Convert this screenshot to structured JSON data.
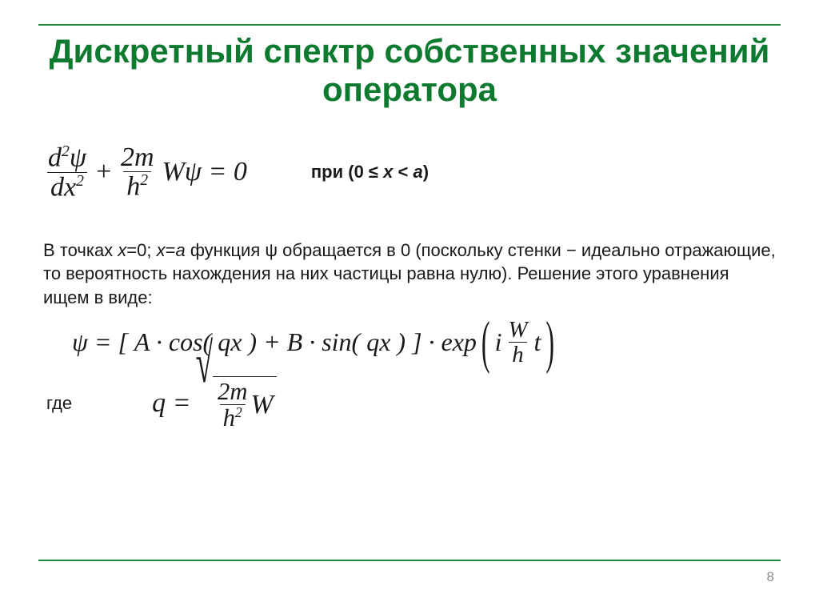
{
  "title": "Дискретный спектр собственных значений оператора",
  "title_color": "#0e7a30",
  "rule_color": "#1a8a3a",
  "equation1": {
    "frac1_num_html": "d<span class='sup'>2</span>ψ",
    "frac1_den_html": "dx<span class='sup'>2</span>",
    "plus": "+",
    "frac2_num_html": "2m",
    "frac2_den_html": "h<span class='sup'>2</span>",
    "tail": "Wψ = 0"
  },
  "condition_html": "при (0 ≤ <span class='it'>x</span> < <span class='it'>a</span>)",
  "paragraph_html": "В точках <span class='it'>x</span>=0; <span class='it'>x</span>=<span class='it'>a</span> функция ψ обращается в 0 (поскольку стенки − идеально отражающие, то вероятность нахождения на них частицы равна нулю). Решение этого уравнения ищем в виде:",
  "equation2": {
    "lead": "ψ = [ A · cos( qx ) + B · sin( qx ) ] · exp",
    "inner_i": "i",
    "inner_frac_num": "W",
    "inner_frac_den": "h",
    "inner_t": "t"
  },
  "where": "где",
  "equation3": {
    "lhs": "q =",
    "frac_num_html": "2m",
    "frac_den_html": "h<span class='sup'>2</span>",
    "tail": "W"
  },
  "page_number": "8"
}
